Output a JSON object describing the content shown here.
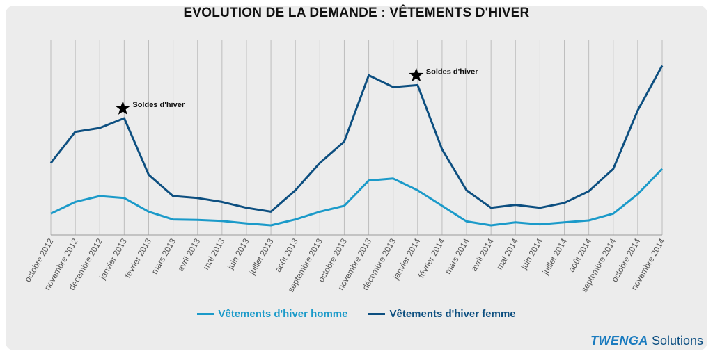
{
  "chart_data": {
    "type": "line",
    "title": "EVOLUTION DE LA DEMANDE : VÊTEMENTS D'HIVER",
    "xlabel": "",
    "ylabel": "",
    "ylim": [
      0,
      100
    ],
    "grid": "vertical",
    "legend": "bottom",
    "categories": [
      "octobre 2012",
      "novembre 2012",
      "décembre 2012",
      "janvier 2013",
      "février 2013",
      "mars 2013",
      "avril 2013",
      "mai 2013",
      "juin 2013",
      "juillet 2013",
      "août 2013",
      "septembre 2013",
      "octobre 2013",
      "novembre 2013",
      "décembre 2013",
      "janvier 2014",
      "février 2014",
      "mars 2014",
      "avril 2014",
      "mai 2014",
      "juin 2014",
      "juillet 2014",
      "août 2014",
      "septembre 2014",
      "octobre 2014",
      "novembre 2014"
    ],
    "series": [
      {
        "name": "Vêtements d'hiver homme",
        "color": "#1b9ac9",
        "values": [
          11,
          17,
          20,
          19,
          12,
          8,
          7.8,
          7.2,
          6,
          5,
          8,
          12,
          15,
          28,
          29,
          23,
          15,
          7,
          5,
          6.5,
          5.5,
          6.5,
          7.5,
          11,
          21,
          34
        ]
      },
      {
        "name": "Vêtements d'hiver femme",
        "color": "#0d4f80",
        "values": [
          37,
          53,
          55,
          60,
          31,
          20,
          19,
          17,
          14,
          12,
          23,
          37,
          48,
          82,
          76,
          77,
          44,
          23,
          14,
          15.5,
          14,
          16.5,
          22.5,
          34,
          64,
          87
        ]
      }
    ],
    "annotations": [
      {
        "label": "Soldes d'hiver",
        "category_index": 3,
        "series": 1
      },
      {
        "label": "Soldes d'hiver",
        "category_index": 15,
        "series": 1
      }
    ]
  },
  "brand": {
    "bold": "TWENGA",
    "rest": " Solutions"
  }
}
